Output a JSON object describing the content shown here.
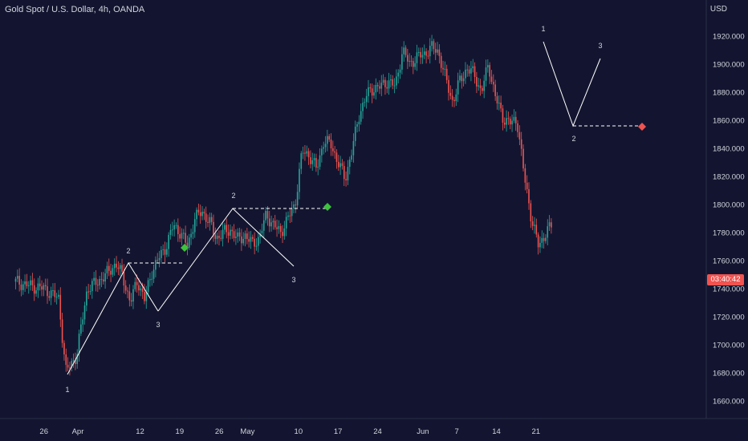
{
  "header": {
    "title": "Gold Spot / U.S. Dollar, 4h, OANDA",
    "currency": "USD"
  },
  "countdown": "03:40:42",
  "colors": {
    "background": "#131530",
    "up": "#26a69a",
    "down": "#ef5350",
    "text": "#d1d4dc",
    "pattern_line": "#ffffff",
    "bull_marker": "#3ec13e",
    "bear_marker": "#ef5350"
  },
  "chart_data": {
    "type": "candlestick",
    "title": "Gold Spot / U.S. Dollar, 4h, OANDA",
    "ylabel": "USD",
    "ylim": [
      1645,
      1935
    ],
    "yticks": [
      "1660.000",
      "1680.000",
      "1700.000",
      "1720.000",
      "1740.000",
      "1760.000",
      "1780.000",
      "1800.000",
      "1820.000",
      "1840.000",
      "1860.000",
      "1880.000",
      "1900.000",
      "1920.000"
    ],
    "xticks": [
      "26",
      "Apr",
      "12",
      "19",
      "26",
      "May",
      "10",
      "17",
      "24",
      "Jun",
      "7",
      "14",
      "21"
    ],
    "xtick_days": [
      -5,
      1,
      12,
      19,
      26,
      31,
      40,
      47,
      54,
      62,
      68,
      75,
      82
    ],
    "x_start": -10,
    "x_end": 85,
    "close_path": [
      [
        -10,
        1745
      ],
      [
        -6,
        1742
      ],
      [
        -2,
        1740
      ],
      [
        2,
        1733
      ],
      [
        4,
        1681
      ],
      [
        7,
        1692
      ],
      [
        10,
        1740
      ],
      [
        13,
        1745
      ],
      [
        16,
        1752
      ],
      [
        18,
        1758
      ],
      [
        20,
        1748
      ],
      [
        22,
        1730
      ],
      [
        24,
        1746
      ],
      [
        26,
        1732
      ],
      [
        28,
        1752
      ],
      [
        30,
        1762
      ],
      [
        32,
        1770
      ],
      [
        34,
        1785
      ],
      [
        36,
        1780
      ],
      [
        38,
        1770
      ],
      [
        40,
        1790
      ],
      [
        42,
        1795
      ],
      [
        44,
        1788
      ],
      [
        46,
        1776
      ],
      [
        48,
        1780
      ],
      [
        50,
        1782
      ],
      [
        52,
        1775
      ],
      [
        54,
        1778
      ],
      [
        56,
        1772
      ],
      [
        58,
        1776
      ],
      [
        60,
        1793
      ],
      [
        62,
        1785
      ],
      [
        64,
        1780
      ],
      [
        66,
        1790
      ],
      [
        68,
        1800
      ],
      [
        70,
        1838
      ],
      [
        72,
        1835
      ],
      [
        74,
        1825
      ],
      [
        76,
        1845
      ],
      [
        78,
        1843
      ],
      [
        80,
        1830
      ],
      [
        82,
        1818
      ],
      [
        84,
        1840
      ],
      [
        86,
        1865
      ],
      [
        88,
        1878
      ],
      [
        90,
        1883
      ],
      [
        92,
        1884
      ],
      [
        94,
        1888
      ],
      [
        96,
        1884
      ],
      [
        98,
        1910
      ],
      [
        100,
        1900
      ],
      [
        102,
        1905
      ],
      [
        104,
        1907
      ],
      [
        106,
        1912
      ],
      [
        108,
        1909
      ],
      [
        110,
        1890
      ],
      [
        112,
        1873
      ],
      [
        114,
        1888
      ],
      [
        116,
        1897
      ],
      [
        118,
        1893
      ],
      [
        120,
        1880
      ],
      [
        122,
        1900
      ],
      [
        124,
        1876
      ],
      [
        126,
        1862
      ],
      [
        128,
        1858
      ],
      [
        130,
        1860
      ],
      [
        132,
        1820
      ],
      [
        134,
        1790
      ],
      [
        136,
        1770
      ],
      [
        138,
        1780
      ],
      [
        140,
        1786
      ]
    ],
    "zigzag_patterns": [
      {
        "direction": "bullish",
        "points": [
          [
            4,
            1678
          ],
          [
            10.5,
            1760
          ],
          [
            14.5,
            1725
          ]
        ],
        "labels": [
          "1",
          "2",
          "3"
        ],
        "level": 1760,
        "signal": [
          17.5,
          1769
        ]
      },
      {
        "direction": "bullish",
        "points": [
          [
            13,
            1725
          ],
          [
            23,
            1799
          ],
          [
            32,
            1758
          ]
        ],
        "labels": [
          "2",
          "3"
        ],
        "level": 1799,
        "signal": [
          33.5,
          1799
        ]
      },
      {
        "direction": "bearish",
        "points": [
          [
            65.6,
            1917
          ],
          [
            70.6,
            1857
          ],
          [
            75.6,
            1904
          ]
        ],
        "labels": [
          "1",
          "2",
          "3"
        ],
        "level": 1857,
        "signal": [
          76.5,
          1857
        ]
      }
    ]
  }
}
